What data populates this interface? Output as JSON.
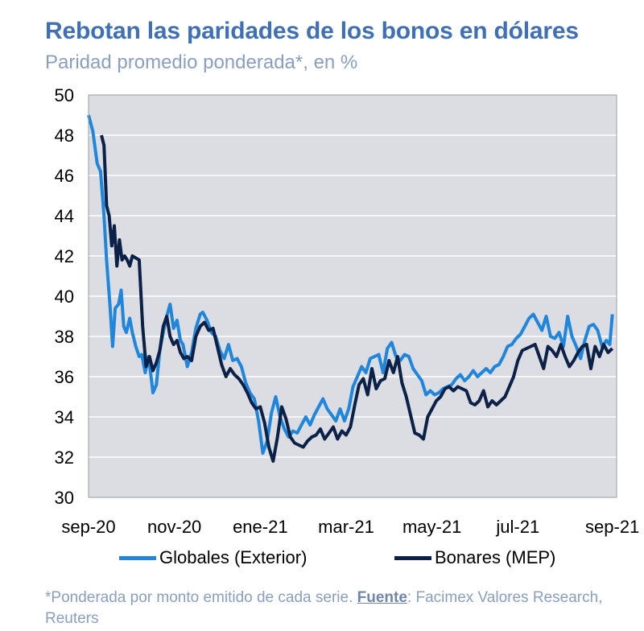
{
  "colors": {
    "globales": "#1f86dc",
    "bonares": "#0b2147",
    "plot_bg": "#dcdde2",
    "title": "#3f6fb5"
  },
  "title": "Rebotan las paridades de los bonos en dólares",
  "subtitle": "Paridad promedio ponderada*, en %",
  "legend": {
    "globales": "Globales (Exterior)",
    "bonares": "Bonares (MEP)"
  },
  "footnote": {
    "text": "*Ponderada por monto emitido de cada serie. ",
    "source_label": "Fuente",
    "source_text": ": Facimex Valores Research, Reuters"
  },
  "chart_data": {
    "type": "line",
    "title": "Rebotan las paridades de los bonos en dólares",
    "subtitle": "Paridad promedio ponderada*, en %",
    "xlabel": "",
    "ylabel": "",
    "ylim": [
      30,
      50
    ],
    "yticks": [
      30,
      32,
      34,
      36,
      38,
      40,
      42,
      44,
      46,
      48,
      50
    ],
    "xlim": [
      0,
      12.3
    ],
    "xticks": [
      {
        "label": "sep-20",
        "pos": 0
      },
      {
        "label": "nov-20",
        "pos": 2
      },
      {
        "label": "ene-21",
        "pos": 4
      },
      {
        "label": "mar-21",
        "pos": 6
      },
      {
        "label": "may-21",
        "pos": 8
      },
      {
        "label": "jul-21",
        "pos": 10
      },
      {
        "label": "sep-21",
        "pos": 12.2
      }
    ],
    "grid": "horizontal",
    "legend_position": "bottom",
    "series": [
      {
        "name": "Globales (Exterior)",
        "color": "#1f86dc",
        "x": [
          0,
          0.1,
          0.2,
          0.28,
          0.36,
          0.42,
          0.5,
          0.56,
          0.62,
          0.7,
          0.76,
          0.82,
          0.88,
          0.96,
          1.02,
          1.1,
          1.18,
          1.24,
          1.32,
          1.4,
          1.5,
          1.58,
          1.66,
          1.74,
          1.82,
          1.9,
          1.98,
          2.06,
          2.14,
          2.2,
          2.3,
          2.4,
          2.5,
          2.6,
          2.66,
          2.76,
          2.86,
          2.96,
          3.06,
          3.16,
          3.26,
          3.36,
          3.46,
          3.56,
          3.66,
          3.76,
          3.86,
          3.96,
          4.06,
          4.16,
          4.26,
          4.36,
          4.46,
          4.56,
          4.66,
          4.76,
          4.86,
          4.96,
          5.06,
          5.16,
          5.26,
          5.36,
          5.46,
          5.56,
          5.66,
          5.76,
          5.86,
          5.96,
          6.06,
          6.16,
          6.26,
          6.36,
          6.46,
          6.56,
          6.66,
          6.76,
          6.86,
          6.96,
          7.06,
          7.16,
          7.26,
          7.36,
          7.46,
          7.56,
          7.66,
          7.76,
          7.86,
          7.96,
          8.06,
          8.16,
          8.26,
          8.36,
          8.46,
          8.56,
          8.66,
          8.76,
          8.86,
          8.96,
          9.06,
          9.16,
          9.26,
          9.36,
          9.46,
          9.56,
          9.66,
          9.76,
          9.86,
          9.96,
          10.06,
          10.16,
          10.26,
          10.36,
          10.46,
          10.56,
          10.66,
          10.76,
          10.86,
          10.96,
          11.06,
          11.16,
          11.26,
          11.36,
          11.46,
          11.56,
          11.66,
          11.76,
          11.86,
          11.96,
          12.06,
          12.14,
          12.2
        ],
        "values": [
          49.0,
          48.2,
          46.6,
          46.2,
          44.0,
          41.8,
          39.5,
          37.5,
          39.4,
          39.6,
          40.3,
          38.5,
          38.2,
          38.9,
          38.2,
          37.5,
          37.0,
          37.1,
          36.2,
          37.0,
          35.2,
          35.6,
          37.3,
          38.2,
          39.0,
          39.6,
          38.4,
          38.8,
          37.8,
          37.6,
          36.5,
          37.2,
          38.4,
          39.1,
          39.2,
          38.8,
          38.2,
          38.0,
          37.3,
          36.9,
          37.6,
          36.8,
          36.9,
          36.5,
          35.7,
          35.2,
          34.9,
          33.8,
          32.2,
          32.8,
          34.2,
          35.0,
          34.0,
          33.4,
          33.0,
          33.3,
          33.2,
          33.6,
          34.0,
          33.6,
          34.1,
          34.5,
          34.9,
          34.4,
          34.1,
          33.8,
          34.4,
          33.8,
          34.4,
          35.5,
          36.0,
          36.5,
          36.2,
          36.9,
          37.0,
          37.1,
          36.2,
          37.4,
          37.7,
          37.0,
          36.8,
          37.1,
          37.0,
          36.4,
          36.1,
          35.8,
          35.1,
          35.3,
          35.1,
          35.2,
          35.4,
          35.5,
          35.6,
          35.9,
          36.1,
          35.8,
          36.0,
          36.3,
          36.0,
          36.2,
          36.4,
          36.2,
          36.5,
          36.6,
          37.0,
          37.5,
          37.6,
          37.9,
          38.1,
          38.5,
          38.9,
          39.1,
          38.7,
          38.3,
          39.0,
          38.0,
          37.9,
          38.2,
          37.5,
          39.0,
          38.0,
          37.5,
          36.9,
          37.8,
          38.5,
          38.6,
          38.3,
          37.5,
          37.8,
          37.6,
          39.1
        ],
        "note": "values read from chart"
      },
      {
        "name": "Bonares (MEP)",
        "color": "#0b2147",
        "x": [
          0.3,
          0.36,
          0.42,
          0.48,
          0.54,
          0.6,
          0.66,
          0.72,
          0.78,
          0.84,
          0.9,
          0.96,
          1.02,
          1.1,
          1.18,
          1.26,
          1.34,
          1.42,
          1.5,
          1.58,
          1.66,
          1.74,
          1.82,
          1.9,
          1.98,
          2.06,
          2.14,
          2.22,
          2.3,
          2.4,
          2.5,
          2.6,
          2.7,
          2.8,
          2.9,
          3.0,
          3.1,
          3.2,
          3.3,
          3.4,
          3.5,
          3.6,
          3.7,
          3.8,
          3.9,
          4.0,
          4.1,
          4.2,
          4.3,
          4.4,
          4.5,
          4.6,
          4.7,
          4.8,
          4.9,
          5.0,
          5.1,
          5.2,
          5.3,
          5.4,
          5.5,
          5.6,
          5.7,
          5.8,
          5.9,
          6.0,
          6.1,
          6.2,
          6.3,
          6.4,
          6.5,
          6.6,
          6.7,
          6.8,
          6.9,
          7.0,
          7.1,
          7.2,
          7.3,
          7.4,
          7.5,
          7.6,
          7.7,
          7.8,
          7.9,
          8.0,
          8.1,
          8.2,
          8.3,
          8.4,
          8.5,
          8.6,
          8.7,
          8.8,
          8.9,
          9.0,
          9.1,
          9.2,
          9.3,
          9.4,
          9.5,
          9.6,
          9.7,
          9.8,
          9.9,
          10.0,
          10.1,
          10.2,
          10.3,
          10.4,
          10.5,
          10.6,
          10.7,
          10.8,
          10.9,
          11.0,
          11.1,
          11.2,
          11.3,
          11.4,
          11.5,
          11.6,
          11.7,
          11.8,
          11.9,
          12.0,
          12.1,
          12.2
        ],
        "values": [
          48.0,
          47.5,
          44.5,
          44.0,
          42.5,
          43.5,
          41.5,
          42.8,
          41.8,
          42.0,
          41.8,
          41.5,
          42.0,
          41.9,
          41.8,
          38.5,
          36.5,
          37.0,
          36.3,
          36.7,
          37.3,
          38.5,
          39.0,
          38.0,
          37.6,
          37.8,
          37.2,
          36.9,
          37.0,
          36.8,
          38.0,
          38.5,
          38.7,
          38.3,
          38.4,
          37.5,
          36.6,
          36.0,
          36.4,
          36.1,
          35.9,
          35.6,
          35.2,
          34.7,
          34.4,
          34.5,
          33.7,
          32.5,
          31.8,
          33.0,
          34.5,
          33.9,
          33.0,
          32.7,
          32.6,
          32.5,
          32.8,
          33.0,
          33.1,
          33.4,
          32.9,
          33.2,
          33.5,
          32.9,
          33.3,
          33.1,
          33.5,
          34.6,
          35.6,
          35.9,
          35.1,
          36.4,
          35.4,
          35.8,
          35.9,
          36.8,
          36.2,
          37.0,
          35.7,
          35.0,
          34.1,
          33.2,
          33.1,
          32.9,
          34.0,
          34.4,
          34.8,
          35.0,
          35.4,
          35.5,
          35.3,
          35.5,
          35.4,
          35.3,
          34.7,
          34.6,
          34.8,
          35.3,
          34.5,
          34.8,
          34.6,
          34.8,
          35.0,
          35.5,
          36.0,
          36.8,
          37.3,
          37.4,
          37.5,
          37.6,
          37.0,
          36.4,
          37.5,
          37.3,
          37.0,
          37.6,
          37.0,
          36.5,
          36.8,
          37.2,
          37.5,
          37.6,
          36.4,
          37.5,
          37.0,
          37.6,
          37.2,
          37.4
        ]
      }
    ]
  }
}
